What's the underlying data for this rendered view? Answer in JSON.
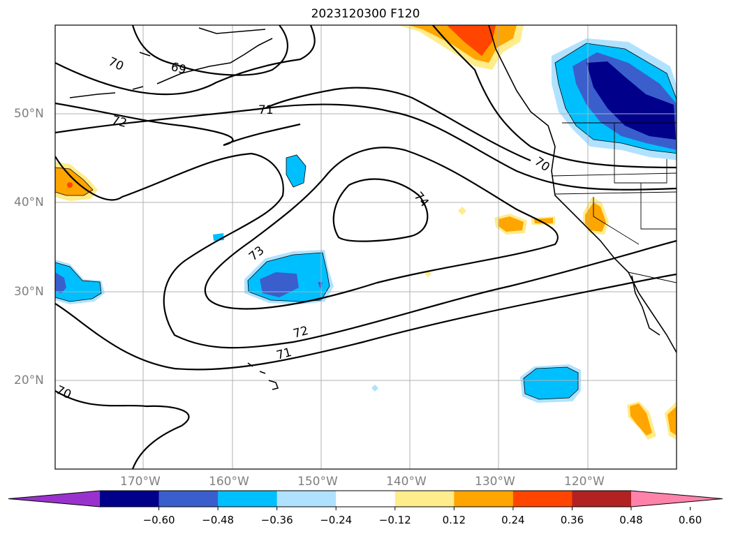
{
  "title": "2023120300 F120",
  "lat_labels": [
    "50°N",
    "40°N",
    "30°N",
    "20°N"
  ],
  "lon_labels": [
    "170°W",
    "160°W",
    "150°W",
    "140°W",
    "130°W",
    "120°W"
  ],
  "contour_labels": [
    "70",
    "69",
    "71",
    "72",
    "70",
    "74",
    "73",
    "72",
    "71",
    "70"
  ],
  "colorbar": {
    "ticks": [
      "−0.60",
      "−0.48",
      "−0.36",
      "−0.24",
      "−0.12",
      "0.12",
      "0.24",
      "0.36",
      "0.48",
      "0.60"
    ],
    "colors": [
      "#9932cc",
      "#00008b",
      "#3a5fcd",
      "#00bfff",
      "#b0e2ff",
      "#ffffff",
      "#ffec8b",
      "#ffa500",
      "#ff4500",
      "#b22222",
      "#ff82ab"
    ]
  }
}
